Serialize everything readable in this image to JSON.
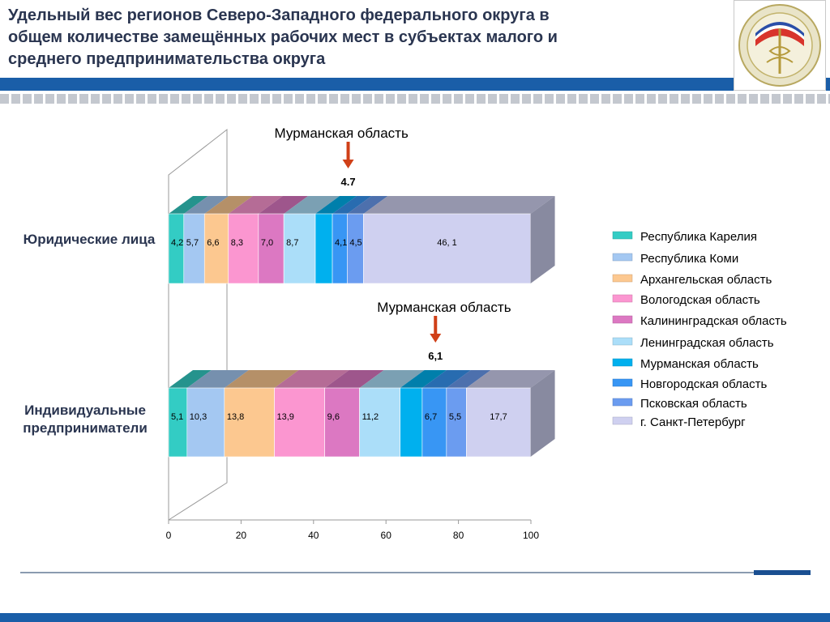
{
  "slide": {
    "title": "Удельный вес регионов Северо-Западного федерального округа в общем количестве замещённых рабочих мест в субъектах малого и среднего предпринимательства округа"
  },
  "chart_data": {
    "type": "bar",
    "stacked": true,
    "orientation": "horizontal",
    "three_d": true,
    "xlim": [
      0,
      100
    ],
    "x_ticks": [
      "0",
      "20",
      "40",
      "60",
      "80",
      "100"
    ],
    "categories": [
      "Юридические лица",
      "Индивидуальные предприниматели"
    ],
    "series": [
      {
        "name": "Республика Карелия",
        "color": "#33ccc4",
        "values": [
          4.2,
          5.1
        ],
        "labels": [
          "4,2",
          "5,1"
        ]
      },
      {
        "name": "Республика Коми",
        "color": "#a4c8f2",
        "values": [
          5.7,
          10.3
        ],
        "labels": [
          "5,7",
          "10,3"
        ]
      },
      {
        "name": "Архангельская область",
        "color": "#fcc890",
        "values": [
          6.6,
          13.8
        ],
        "labels": [
          "6,6",
          "13,8"
        ]
      },
      {
        "name": "Вологодская область",
        "color": "#fb96d0",
        "values": [
          8.3,
          13.9
        ],
        "labels": [
          "8,3",
          "13,9"
        ]
      },
      {
        "name": "Калининградская область",
        "color": "#dc78c2",
        "values": [
          7.0,
          9.6
        ],
        "labels": [
          "7,0",
          "9,6"
        ]
      },
      {
        "name": "Ленинградская область",
        "color": "#abdef9",
        "values": [
          8.7,
          11.2
        ],
        "labels": [
          "8,7",
          "11,2"
        ]
      },
      {
        "name": "Мурманская область",
        "color": "#00b0ee",
        "values": [
          4.7,
          6.1
        ],
        "labels": [
          "",
          ""
        ]
      },
      {
        "name": "Новгородская область",
        "color": "#3896f4",
        "values": [
          4.1,
          6.7
        ],
        "labels": [
          "4,1",
          "6,7"
        ]
      },
      {
        "name": "Псковская область",
        "color": "#6b9cf0",
        "values": [
          4.5,
          5.5
        ],
        "labels": [
          "4,5",
          "5,5"
        ]
      },
      {
        "name": "г. Санкт-Петербург",
        "color": "#cfd0f0",
        "values": [
          46.1,
          17.7
        ],
        "labels": [
          "46, 1",
          "17,7"
        ]
      }
    ],
    "annotations": [
      {
        "row": 0,
        "series": "Мурманская область",
        "label": "Мурманская область",
        "value": "4.7"
      },
      {
        "row": 1,
        "series": "Мурманская область",
        "label": "Мурманская область",
        "value": "6,1"
      }
    ],
    "arrow_color": "#d04018",
    "legend": "right"
  }
}
